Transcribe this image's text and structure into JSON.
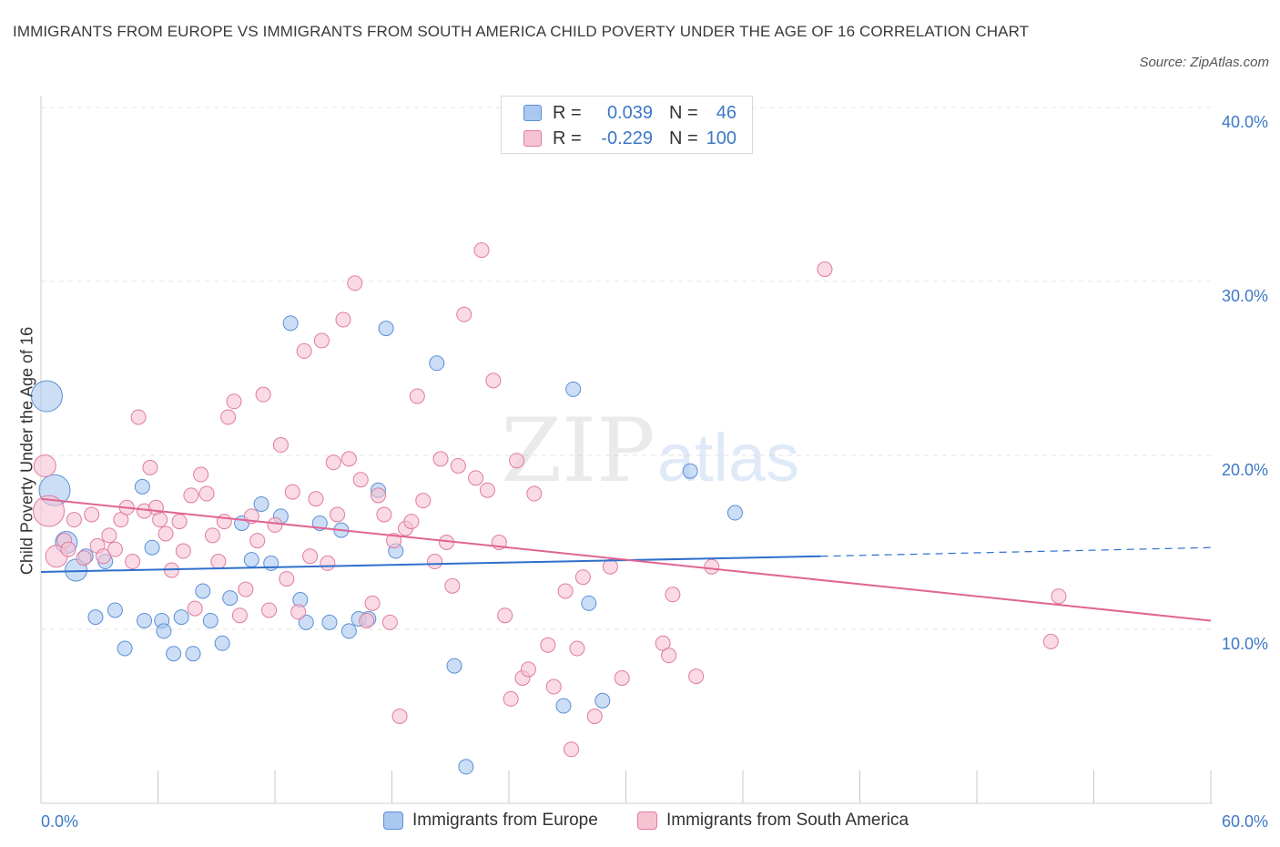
{
  "title": "IMMIGRANTS FROM EUROPE VS IMMIGRANTS FROM SOUTH AMERICA CHILD POVERTY UNDER THE AGE OF 16 CORRELATION CHART",
  "source": "Source: ZipAtlas.com",
  "watermark": {
    "zip": "ZIP",
    "atlas": "atlas"
  },
  "colors": {
    "europe_fill": "#aac8f0",
    "europe_stroke": "#5b8fd6",
    "europe_line": "#2f6fcc",
    "sa_fill": "#f6c3d3",
    "sa_stroke": "#e07b9e",
    "sa_line": "#e06492",
    "axis_text": "#3d78c7",
    "grid": "#e3e3e3"
  },
  "legend_top": {
    "rows": [
      {
        "r_label": "R =",
        "r_value": "0.039",
        "n_label": "N =",
        "n_value": "46"
      },
      {
        "r_label": "R =",
        "r_value": "-0.229",
        "n_label": "N =",
        "n_value": "100"
      }
    ]
  },
  "legend_bottom": {
    "europe": "Immigrants from Europe",
    "south_america": "Immigrants from South America"
  },
  "chart_data": {
    "type": "scatter",
    "title": "IMMIGRANTS FROM EUROPE VS IMMIGRANTS FROM SOUTH AMERICA CHILD POVERTY UNDER THE AGE OF 16 CORRELATION CHART",
    "xlabel": "",
    "ylabel": "Child Poverty Under the Age of 16",
    "xlim": [
      0,
      60
    ],
    "ylim": [
      1,
      41
    ],
    "x_tick_labels": [
      "0.0%",
      "60.0%"
    ],
    "y_ticks": [
      10,
      20,
      30,
      40
    ],
    "y_tick_labels": [
      "10.0%",
      "20.0%",
      "30.0%",
      "40.0%"
    ],
    "grid": true,
    "series": [
      {
        "name": "Immigrants from Europe",
        "r": 0.039,
        "n": 46,
        "trend": {
          "x0": 0,
          "y0": 13.3,
          "x1": 40,
          "y1": 14.2,
          "dashed_x1": 60,
          "dashed_y1": 14.7
        },
        "points": [
          {
            "x": 0.3,
            "y": 23.4,
            "s": 3
          },
          {
            "x": 0.7,
            "y": 18.0,
            "s": 3
          },
          {
            "x": 1.3,
            "y": 15.0,
            "s": 2
          },
          {
            "x": 1.8,
            "y": 13.4,
            "s": 2
          },
          {
            "x": 2.3,
            "y": 14.2,
            "s": 1
          },
          {
            "x": 3.3,
            "y": 13.9,
            "s": 1
          },
          {
            "x": 2.8,
            "y": 10.7,
            "s": 1
          },
          {
            "x": 3.8,
            "y": 11.1,
            "s": 1
          },
          {
            "x": 4.3,
            "y": 8.9,
            "s": 1
          },
          {
            "x": 5.3,
            "y": 10.5,
            "s": 1
          },
          {
            "x": 5.2,
            "y": 18.2,
            "s": 1
          },
          {
            "x": 5.7,
            "y": 14.7,
            "s": 1
          },
          {
            "x": 6.2,
            "y": 10.5,
            "s": 1
          },
          {
            "x": 6.3,
            "y": 9.9,
            "s": 1
          },
          {
            "x": 6.8,
            "y": 8.6,
            "s": 1
          },
          {
            "x": 7.2,
            "y": 10.7,
            "s": 1
          },
          {
            "x": 7.8,
            "y": 8.6,
            "s": 1
          },
          {
            "x": 8.3,
            "y": 12.2,
            "s": 1
          },
          {
            "x": 8.7,
            "y": 10.5,
            "s": 1
          },
          {
            "x": 9.3,
            "y": 9.2,
            "s": 1
          },
          {
            "x": 9.7,
            "y": 11.8,
            "s": 1
          },
          {
            "x": 10.3,
            "y": 16.1,
            "s": 1
          },
          {
            "x": 10.8,
            "y": 14.0,
            "s": 1
          },
          {
            "x": 11.3,
            "y": 17.2,
            "s": 1
          },
          {
            "x": 11.8,
            "y": 13.8,
            "s": 1
          },
          {
            "x": 12.3,
            "y": 16.5,
            "s": 1
          },
          {
            "x": 12.8,
            "y": 27.6,
            "s": 1
          },
          {
            "x": 13.3,
            "y": 11.7,
            "s": 1
          },
          {
            "x": 13.6,
            "y": 10.4,
            "s": 1
          },
          {
            "x": 14.3,
            "y": 16.1,
            "s": 1
          },
          {
            "x": 14.8,
            "y": 10.4,
            "s": 1
          },
          {
            "x": 15.4,
            "y": 15.7,
            "s": 1
          },
          {
            "x": 15.8,
            "y": 9.9,
            "s": 1
          },
          {
            "x": 16.3,
            "y": 10.6,
            "s": 1
          },
          {
            "x": 16.8,
            "y": 10.6,
            "s": 1
          },
          {
            "x": 17.3,
            "y": 18.0,
            "s": 1
          },
          {
            "x": 17.7,
            "y": 27.3,
            "s": 1
          },
          {
            "x": 18.2,
            "y": 14.5,
            "s": 1
          },
          {
            "x": 20.3,
            "y": 25.3,
            "s": 1
          },
          {
            "x": 21.2,
            "y": 7.9,
            "s": 1
          },
          {
            "x": 21.8,
            "y": 2.1,
            "s": 1
          },
          {
            "x": 26.8,
            "y": 5.6,
            "s": 1
          },
          {
            "x": 27.3,
            "y": 23.8,
            "s": 1
          },
          {
            "x": 28.1,
            "y": 11.5,
            "s": 1
          },
          {
            "x": 28.8,
            "y": 5.9,
            "s": 1
          },
          {
            "x": 33.3,
            "y": 19.1,
            "s": 1
          },
          {
            "x": 35.6,
            "y": 16.7,
            "s": 1
          }
        ]
      },
      {
        "name": "Immigrants from South America",
        "r": -0.229,
        "n": 100,
        "trend": {
          "x0": 0,
          "y0": 17.5,
          "x1": 60,
          "y1": 10.5
        },
        "points": [
          {
            "x": 0.2,
            "y": 19.4,
            "s": 2
          },
          {
            "x": 0.4,
            "y": 16.8,
            "s": 3
          },
          {
            "x": 0.8,
            "y": 14.2,
            "s": 2
          },
          {
            "x": 1.2,
            "y": 15.1,
            "s": 1
          },
          {
            "x": 1.4,
            "y": 14.6,
            "s": 1
          },
          {
            "x": 1.7,
            "y": 16.3,
            "s": 1
          },
          {
            "x": 2.2,
            "y": 14.1,
            "s": 1
          },
          {
            "x": 2.6,
            "y": 16.6,
            "s": 1
          },
          {
            "x": 2.9,
            "y": 14.8,
            "s": 1
          },
          {
            "x": 3.2,
            "y": 14.2,
            "s": 1
          },
          {
            "x": 3.5,
            "y": 15.4,
            "s": 1
          },
          {
            "x": 3.8,
            "y": 14.6,
            "s": 1
          },
          {
            "x": 4.1,
            "y": 16.3,
            "s": 1
          },
          {
            "x": 4.4,
            "y": 17.0,
            "s": 1
          },
          {
            "x": 4.7,
            "y": 13.9,
            "s": 1
          },
          {
            "x": 5.0,
            "y": 22.2,
            "s": 1
          },
          {
            "x": 5.3,
            "y": 16.8,
            "s": 1
          },
          {
            "x": 5.6,
            "y": 19.3,
            "s": 1
          },
          {
            "x": 5.9,
            "y": 17.0,
            "s": 1
          },
          {
            "x": 6.1,
            "y": 16.3,
            "s": 1
          },
          {
            "x": 6.4,
            "y": 15.5,
            "s": 1
          },
          {
            "x": 6.7,
            "y": 13.4,
            "s": 1
          },
          {
            "x": 7.1,
            "y": 16.2,
            "s": 1
          },
          {
            "x": 7.3,
            "y": 14.5,
            "s": 1
          },
          {
            "x": 7.7,
            "y": 17.7,
            "s": 1
          },
          {
            "x": 7.9,
            "y": 11.2,
            "s": 1
          },
          {
            "x": 8.2,
            "y": 18.9,
            "s": 1
          },
          {
            "x": 8.5,
            "y": 17.8,
            "s": 1
          },
          {
            "x": 8.8,
            "y": 15.4,
            "s": 1
          },
          {
            "x": 9.1,
            "y": 13.9,
            "s": 1
          },
          {
            "x": 9.4,
            "y": 16.2,
            "s": 1
          },
          {
            "x": 9.6,
            "y": 22.2,
            "s": 1
          },
          {
            "x": 9.9,
            "y": 23.1,
            "s": 1
          },
          {
            "x": 10.2,
            "y": 10.8,
            "s": 1
          },
          {
            "x": 10.5,
            "y": 12.3,
            "s": 1
          },
          {
            "x": 10.8,
            "y": 16.5,
            "s": 1
          },
          {
            "x": 11.1,
            "y": 15.1,
            "s": 1
          },
          {
            "x": 11.4,
            "y": 23.5,
            "s": 1
          },
          {
            "x": 11.7,
            "y": 11.1,
            "s": 1
          },
          {
            "x": 12.0,
            "y": 16.0,
            "s": 1
          },
          {
            "x": 12.3,
            "y": 20.6,
            "s": 1
          },
          {
            "x": 12.6,
            "y": 12.9,
            "s": 1
          },
          {
            "x": 12.9,
            "y": 17.9,
            "s": 1
          },
          {
            "x": 13.2,
            "y": 11.0,
            "s": 1
          },
          {
            "x": 13.5,
            "y": 26.0,
            "s": 1
          },
          {
            "x": 13.8,
            "y": 14.2,
            "s": 1
          },
          {
            "x": 14.1,
            "y": 17.5,
            "s": 1
          },
          {
            "x": 14.4,
            "y": 26.6,
            "s": 1
          },
          {
            "x": 14.7,
            "y": 13.8,
            "s": 1
          },
          {
            "x": 15.0,
            "y": 19.6,
            "s": 1
          },
          {
            "x": 15.2,
            "y": 16.6,
            "s": 1
          },
          {
            "x": 15.5,
            "y": 27.8,
            "s": 1
          },
          {
            "x": 15.8,
            "y": 19.8,
            "s": 1
          },
          {
            "x": 16.1,
            "y": 29.9,
            "s": 1
          },
          {
            "x": 16.4,
            "y": 18.6,
            "s": 1
          },
          {
            "x": 16.7,
            "y": 10.5,
            "s": 1
          },
          {
            "x": 17.0,
            "y": 11.5,
            "s": 1
          },
          {
            "x": 17.3,
            "y": 17.7,
            "s": 1
          },
          {
            "x": 17.6,
            "y": 16.6,
            "s": 1
          },
          {
            "x": 17.9,
            "y": 10.4,
            "s": 1
          },
          {
            "x": 18.1,
            "y": 15.1,
            "s": 1
          },
          {
            "x": 18.4,
            "y": 5.0,
            "s": 1
          },
          {
            "x": 18.7,
            "y": 15.8,
            "s": 1
          },
          {
            "x": 19.0,
            "y": 16.2,
            "s": 1
          },
          {
            "x": 19.3,
            "y": 23.4,
            "s": 1
          },
          {
            "x": 19.6,
            "y": 17.4,
            "s": 1
          },
          {
            "x": 20.2,
            "y": 13.9,
            "s": 1
          },
          {
            "x": 20.5,
            "y": 19.8,
            "s": 1
          },
          {
            "x": 20.8,
            "y": 15.0,
            "s": 1
          },
          {
            "x": 21.1,
            "y": 12.5,
            "s": 1
          },
          {
            "x": 21.4,
            "y": 19.4,
            "s": 1
          },
          {
            "x": 21.7,
            "y": 28.1,
            "s": 1
          },
          {
            "x": 22.3,
            "y": 18.7,
            "s": 1
          },
          {
            "x": 22.6,
            "y": 31.8,
            "s": 1
          },
          {
            "x": 22.9,
            "y": 18.0,
            "s": 1
          },
          {
            "x": 23.2,
            "y": 24.3,
            "s": 1
          },
          {
            "x": 23.5,
            "y": 15.0,
            "s": 1
          },
          {
            "x": 23.8,
            "y": 10.8,
            "s": 1
          },
          {
            "x": 24.1,
            "y": 6.0,
            "s": 1
          },
          {
            "x": 24.4,
            "y": 19.7,
            "s": 1
          },
          {
            "x": 24.7,
            "y": 7.2,
            "s": 1
          },
          {
            "x": 25.0,
            "y": 7.7,
            "s": 1
          },
          {
            "x": 25.3,
            "y": 17.8,
            "s": 1
          },
          {
            "x": 26.0,
            "y": 9.1,
            "s": 1
          },
          {
            "x": 26.3,
            "y": 6.7,
            "s": 1
          },
          {
            "x": 26.9,
            "y": 12.2,
            "s": 1
          },
          {
            "x": 27.2,
            "y": 3.1,
            "s": 1
          },
          {
            "x": 27.5,
            "y": 8.9,
            "s": 1
          },
          {
            "x": 27.8,
            "y": 13.0,
            "s": 1
          },
          {
            "x": 28.4,
            "y": 5.0,
            "s": 1
          },
          {
            "x": 29.2,
            "y": 13.6,
            "s": 1
          },
          {
            "x": 29.8,
            "y": 7.2,
            "s": 1
          },
          {
            "x": 31.9,
            "y": 9.2,
            "s": 1
          },
          {
            "x": 32.2,
            "y": 8.5,
            "s": 1
          },
          {
            "x": 32.4,
            "y": 12.0,
            "s": 1
          },
          {
            "x": 33.6,
            "y": 7.3,
            "s": 1
          },
          {
            "x": 34.4,
            "y": 13.6,
            "s": 1
          },
          {
            "x": 40.2,
            "y": 30.7,
            "s": 1
          },
          {
            "x": 51.8,
            "y": 9.3,
            "s": 1
          },
          {
            "x": 52.2,
            "y": 11.9,
            "s": 1
          }
        ]
      }
    ]
  }
}
